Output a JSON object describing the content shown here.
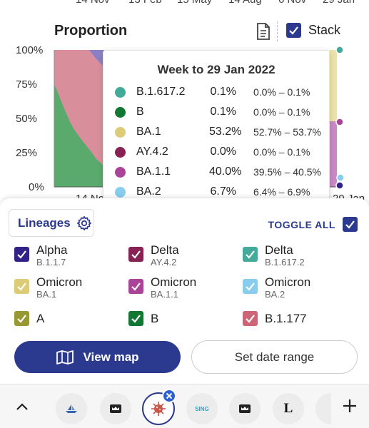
{
  "top_axis": [
    "14 Nov",
    "13 Feb",
    "15 May",
    "14 Aug",
    "6 Nov",
    "29 Jan"
  ],
  "chart": {
    "title": "Proportion",
    "stack_label": "Stack",
    "stack_checked": true,
    "y_ticks": [
      "100%",
      "75%",
      "50%",
      "25%",
      "0%"
    ],
    "bottom_ticks": [
      "14 No",
      "29 Jan"
    ]
  },
  "tooltip": {
    "title": "Week to 29 Jan 2022",
    "rows": [
      {
        "name": "B.1.617.2",
        "value": "0.1%",
        "range": "0.0% – 0.1%",
        "color": "#44aa99"
      },
      {
        "name": "B",
        "value": "0.1%",
        "range": "0.0% – 0.1%",
        "color": "#117733"
      },
      {
        "name": "BA.1",
        "value": "53.2%",
        "range": "52.7% – 53.7%",
        "color": "#ddcc77"
      },
      {
        "name": "AY.4.2",
        "value": "0.0%",
        "range": "0.0% – 0.1%",
        "color": "#882255"
      },
      {
        "name": "BA.1.1",
        "value": "40.0%",
        "range": "39.5% – 40.5%",
        "color": "#aa4499"
      },
      {
        "name": "BA.2",
        "value": "6.7%",
        "range": "6.4% – 6.9%",
        "color": "#88ccee"
      }
    ]
  },
  "panel": {
    "lineages_label": "Lineages",
    "toggle_all_label": "TOGGLE ALL",
    "lineages": [
      {
        "name": "Alpha",
        "sub": "B.1.1.7",
        "color": "#332288"
      },
      {
        "name": "Delta",
        "sub": "AY.4.2",
        "color": "#882255"
      },
      {
        "name": "Delta",
        "sub": "B.1.617.2",
        "color": "#44aa99"
      },
      {
        "name": "Omicron",
        "sub": "BA.1",
        "color": "#ddcc77"
      },
      {
        "name": "Omicron",
        "sub": "BA.1.1",
        "color": "#aa4499"
      },
      {
        "name": "Omicron",
        "sub": "BA.2",
        "color": "#88ccee"
      },
      {
        "name": "A",
        "sub": "",
        "color": "#999933"
      },
      {
        "name": "B",
        "sub": "",
        "color": "#117733"
      },
      {
        "name": "B.1.177",
        "sub": "",
        "color": "#cc6677"
      }
    ],
    "view_map_label": "View map",
    "date_range_label": "Set date range"
  },
  "tabs": [
    {
      "icon": "chevron-up-icon"
    },
    {
      "icon": "boat-favicon"
    },
    {
      "icon": "crown-favicon"
    },
    {
      "icon": "virus-favicon",
      "active": true
    },
    {
      "icon": "sing-favicon",
      "text": "SING"
    },
    {
      "icon": "crown-favicon"
    },
    {
      "icon": "letter-l-favicon",
      "text": "L"
    },
    {
      "icon": "partial-favicon"
    },
    {
      "icon": "plus-icon"
    }
  ],
  "colors": {
    "accent": "#2b3a8e"
  }
}
